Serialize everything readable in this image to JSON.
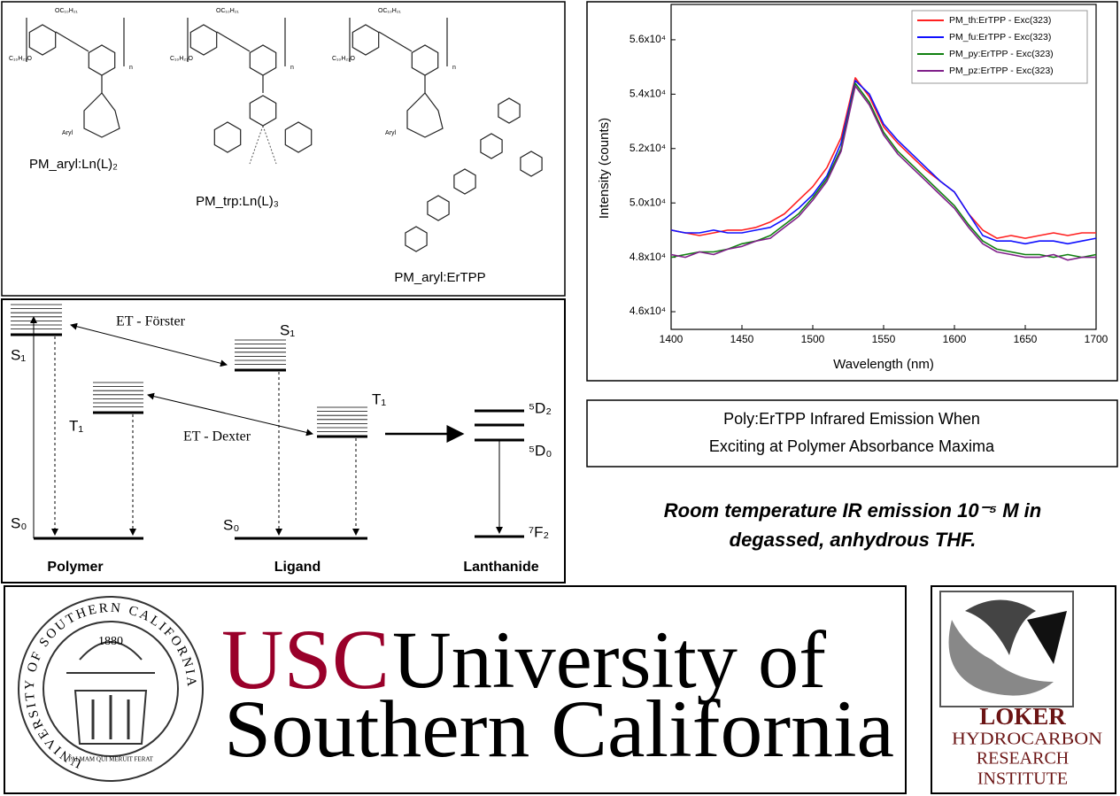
{
  "structures": {
    "molecules": [
      {
        "label": "PM_aryl:Ln(L)₂",
        "substituents": [
          "OC₁₀H₂₁",
          "C₁₀H₂₁O",
          "n",
          "Aryl"
        ]
      },
      {
        "label": "PM_trp:Ln(L)₃",
        "substituents": [
          "OC₁₀H₂₁",
          "C₁₀H₂₁O",
          "n"
        ]
      },
      {
        "label": "PM_aryl:ErTPP",
        "substituents": [
          "OC₁₀H₂₁",
          "C₁₀H₂₁O",
          "n",
          "Aryl"
        ]
      }
    ]
  },
  "energy_diagram": {
    "transfer_labels": [
      "ET - Förster",
      "ET - Dexter"
    ],
    "columns": [
      "Polymer",
      "Ligand",
      "Lanthanide"
    ],
    "polymer_levels": [
      "S₁",
      "T₁",
      "S₀"
    ],
    "ligand_levels": [
      "S₁",
      "T₁",
      "S₀"
    ],
    "lanthanide_levels": [
      "⁵D₂",
      "⁵D₀",
      "⁷F₂"
    ]
  },
  "chart_data": {
    "type": "line",
    "x_label": "Wavelength (nm)",
    "y_label": "Intensity (counts)",
    "x": [
      1400,
      1410,
      1420,
      1430,
      1440,
      1450,
      1460,
      1470,
      1480,
      1490,
      1500,
      1510,
      1520,
      1530,
      1540,
      1550,
      1560,
      1570,
      1580,
      1590,
      1600,
      1610,
      1620,
      1630,
      1640,
      1650,
      1660,
      1670,
      1680,
      1690,
      1700
    ],
    "series": [
      {
        "name": "PM_th:ErTPP - Exc(323)",
        "color": "#ff2020",
        "values": [
          49000,
          48900,
          48800,
          48900,
          49000,
          49000,
          49100,
          49300,
          49600,
          50100,
          50600,
          51300,
          52400,
          54600,
          53900,
          52800,
          52200,
          51700,
          51200,
          50800,
          50400,
          49600,
          49000,
          48700,
          48800,
          48700,
          48800,
          48900,
          48800,
          48900,
          48900
        ]
      },
      {
        "name": "PM_fu:ErTPP - Exc(323)",
        "color": "#1010ff",
        "values": [
          49000,
          48900,
          48900,
          49000,
          48900,
          48900,
          49000,
          49100,
          49400,
          49800,
          50300,
          51000,
          52200,
          54500,
          54000,
          52900,
          52300,
          51800,
          51300,
          50800,
          50400,
          49600,
          48800,
          48600,
          48600,
          48500,
          48600,
          48600,
          48500,
          48600,
          48700
        ]
      },
      {
        "name": "PM_py:ErTPP - Exc(323)",
        "color": "#108010",
        "values": [
          48000,
          48100,
          48200,
          48200,
          48300,
          48500,
          48600,
          48800,
          49200,
          49600,
          50200,
          50900,
          52000,
          54400,
          53700,
          52600,
          51900,
          51400,
          50900,
          50400,
          49900,
          49200,
          48600,
          48300,
          48200,
          48100,
          48100,
          48000,
          48100,
          48000,
          48100
        ]
      },
      {
        "name": "PM_pz:ErTPP - Exc(323)",
        "color": "#80208a",
        "values": [
          48100,
          48000,
          48200,
          48100,
          48300,
          48400,
          48600,
          48700,
          49100,
          49500,
          50100,
          50800,
          51900,
          54300,
          53600,
          52500,
          51800,
          51300,
          50800,
          50300,
          49800,
          49100,
          48500,
          48200,
          48100,
          48000,
          48000,
          48100,
          47900,
          48000,
          48000
        ]
      }
    ],
    "xlim": [
      1400,
      1700
    ],
    "xticks": [
      1400,
      1450,
      1500,
      1550,
      1600,
      1650,
      1700
    ],
    "ylim": [
      45350,
      57300
    ],
    "yticks": [
      {
        "value": 46000,
        "label": "4.6x10⁴"
      },
      {
        "value": 48000,
        "label": "4.8x10⁴"
      },
      {
        "value": 50000,
        "label": "5.0x10⁴"
      },
      {
        "value": 52000,
        "label": "5.2x10⁴"
      },
      {
        "value": 54000,
        "label": "5.4x10⁴"
      },
      {
        "value": 56000,
        "label": "5.6x10⁴"
      }
    ],
    "legend": "top-right",
    "grid": false
  },
  "caption": {
    "lines": [
      "Poly:ErTPP Infrared Emission When",
      "Exciting at Polymer Absorbance Maxima"
    ]
  },
  "note": {
    "lines": [
      "Room temperature IR emission 10⁻⁵ M in",
      "degassed, anhydrous THF."
    ]
  },
  "logos": {
    "usc": {
      "mark": "USC",
      "name": [
        "University of",
        "Southern California"
      ],
      "seal": {
        "ring": "UNIVERSITY OF SOUTHERN CALIFORNIA",
        "year": "1880",
        "motto": "PALMAM QUI MERUIT FERAT"
      }
    },
    "loker": {
      "lines": [
        "LOKER",
        "HYDROCARBON",
        "RESEARCH",
        "INSTITUTE"
      ]
    }
  }
}
